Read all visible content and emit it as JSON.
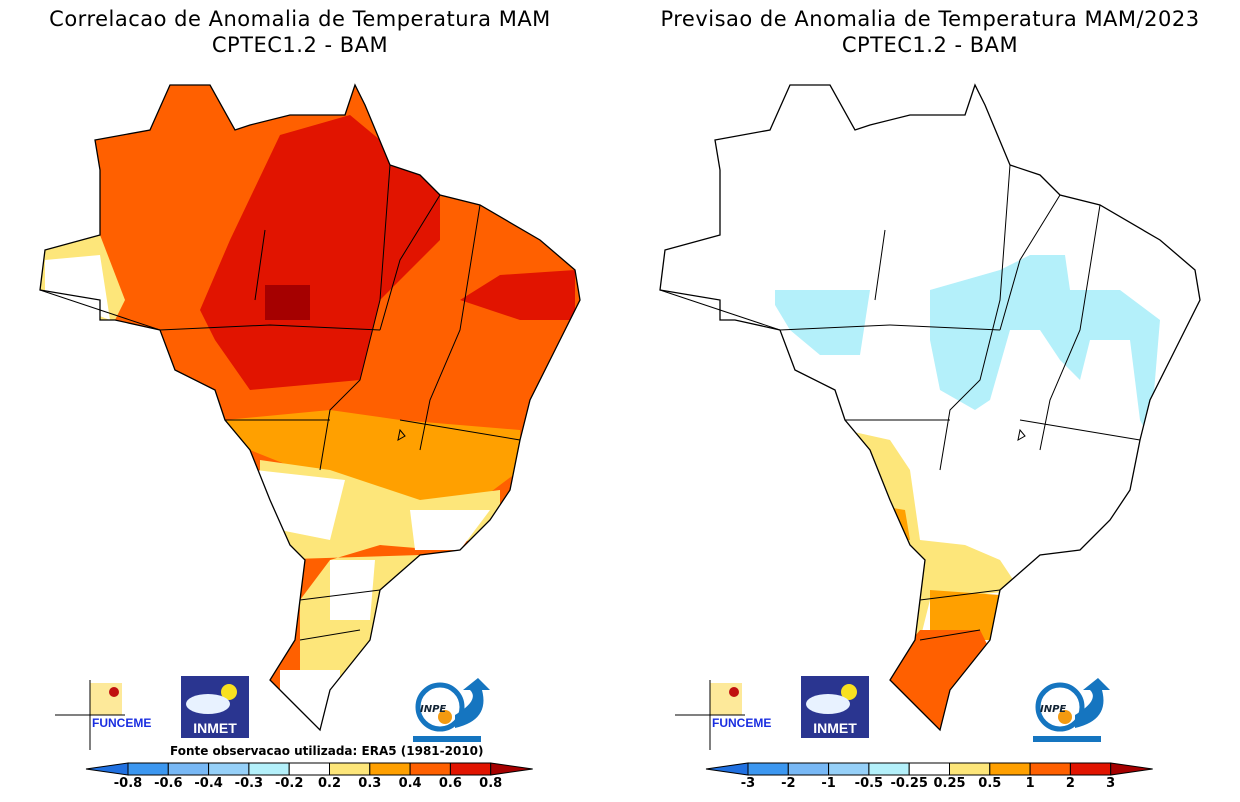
{
  "left": {
    "title": "Correlacao de Anomalia de Temperatura MAM",
    "subtitle": "CPTEC1.2 - BAM",
    "source_note": "Fonte observacao utilizada: ERA5 (1981-2010)",
    "colorbar_ticks": [
      "-0.8",
      "-0.6",
      "-0.4",
      "-0.3",
      "-0.2",
      "0.2",
      "0.3",
      "0.4",
      "0.6",
      "0.8"
    ]
  },
  "right": {
    "title": "Previsao de Anomalia de Temperatura MAM/2023",
    "subtitle": "CPTEC1.2 - BAM",
    "colorbar_ticks": [
      "-3",
      "-2",
      "-1",
      "-0.5",
      "-0.25",
      "0.25",
      "0.5",
      "1",
      "2",
      "3"
    ]
  },
  "colorbar_colors": [
    "#2070e0",
    "#3c97f0",
    "#78b8f5",
    "#96d0f8",
    "#b4f0fa",
    "#ffffff",
    "#fde67a",
    "#ffa000",
    "#ff6000",
    "#e11400",
    "#a50000"
  ],
  "logos": {
    "funceme": "FUNCEME",
    "inmet": "INMET",
    "inpe": "INPE"
  }
}
